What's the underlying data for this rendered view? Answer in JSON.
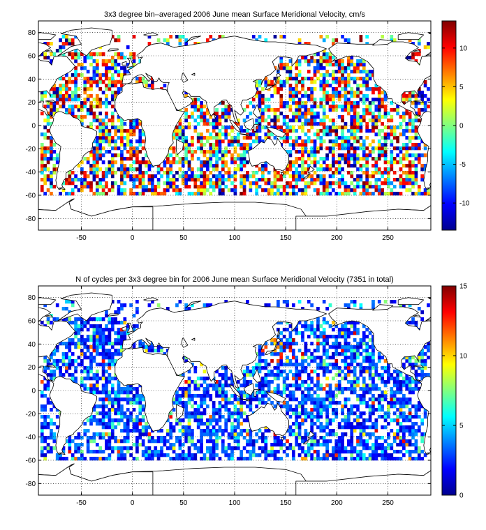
{
  "chart_data": [
    {
      "type": "heatmap",
      "title": "3x3 degree bin–averaged 2006 June mean Surface Meridional Velocity, cm/s",
      "xlim": [
        -92,
        292
      ],
      "ylim": [
        -90,
        90
      ],
      "xticks": [
        -50,
        0,
        50,
        100,
        150,
        200,
        250
      ],
      "yticks": [
        -80,
        -60,
        -40,
        -20,
        0,
        20,
        40,
        60,
        80
      ],
      "colorbar": {
        "range": [
          -13.5,
          13.5
        ],
        "ticks": [
          -10,
          -5,
          0,
          5,
          10
        ],
        "colormap": "jet"
      },
      "bin_size_deg": 3,
      "coverage_lat": [
        -60,
        78
      ],
      "grid": true,
      "seed": 20060601
    },
    {
      "type": "heatmap",
      "title": "N of cycles per 3x3 degree bin for 2006 June mean Surface Meridional Velocity (7351 in total)",
      "xlim": [
        -92,
        292
      ],
      "ylim": [
        -90,
        90
      ],
      "xticks": [
        -50,
        0,
        50,
        100,
        150,
        200,
        250
      ],
      "yticks": [
        -80,
        -60,
        -40,
        -20,
        0,
        20,
        40,
        60,
        80
      ],
      "colorbar": {
        "range": [
          0,
          15
        ],
        "ticks": [
          0,
          5,
          10,
          15
        ],
        "colormap": "jet"
      },
      "bin_size_deg": 3,
      "coverage_lat": [
        -60,
        78
      ],
      "total_cycles": 7351,
      "grid": true,
      "seed": 20060602
    }
  ]
}
